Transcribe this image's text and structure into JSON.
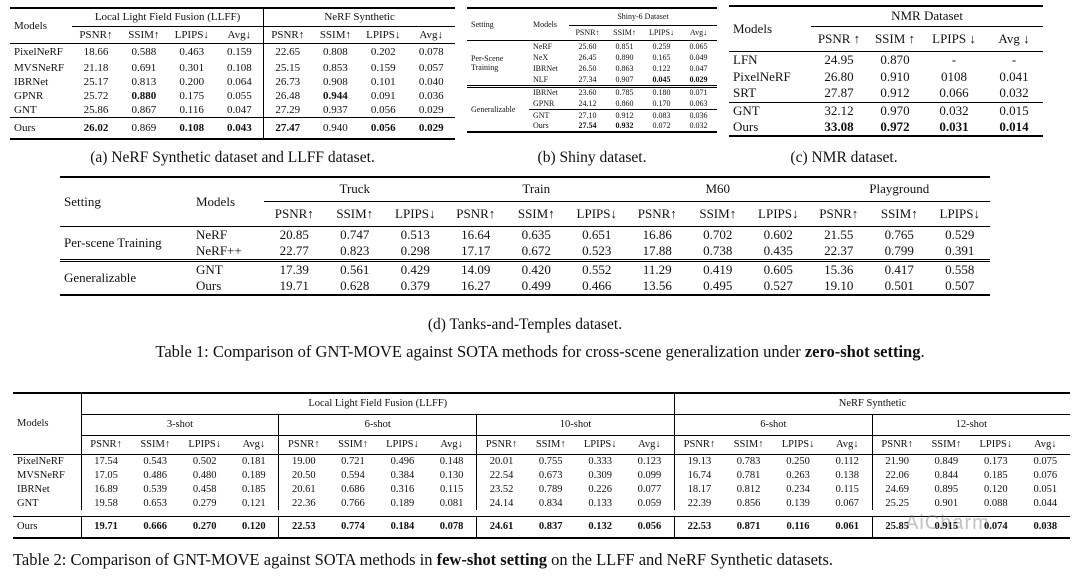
{
  "table_a": {
    "models_label": "Models",
    "groups": [
      "Local Light Field Fusion (LLFF)",
      "NeRF Synthetic"
    ],
    "metrics": [
      "PSNR↑",
      "SSIM↑",
      "LPIPS↓",
      "Avg↓"
    ],
    "rows": [
      {
        "model": "PixelNeRF",
        "values": [
          "18.66",
          "0.588",
          "0.463",
          "0.159",
          "22.65",
          "0.808",
          "0.202",
          "0.078"
        ],
        "bold": []
      },
      {
        "model": "MVSNeRF",
        "values": [
          "21.18",
          "0.691",
          "0.301",
          "0.108",
          "25.15",
          "0.853",
          "0.159",
          "0.057"
        ],
        "bold": []
      },
      {
        "model": "IBRNet",
        "values": [
          "25.17",
          "0.813",
          "0.200",
          "0.064",
          "26.73",
          "0.908",
          "0.101",
          "0.040"
        ],
        "bold": []
      },
      {
        "model": "GPNR",
        "values": [
          "25.72",
          "0.880",
          "0.175",
          "0.055",
          "26.48",
          "0.944",
          "0.091",
          "0.036"
        ],
        "bold": [
          1,
          5
        ]
      },
      {
        "model": "GNT",
        "values": [
          "25.86",
          "0.867",
          "0.116",
          "0.047",
          "27.29",
          "0.937",
          "0.056",
          "0.029"
        ],
        "bold": []
      }
    ],
    "ours": {
      "model": "Ours",
      "values": [
        "26.02",
        "0.869",
        "0.108",
        "0.043",
        "27.47",
        "0.940",
        "0.056",
        "0.029"
      ],
      "bold": [
        0,
        2,
        3,
        4,
        6,
        7
      ]
    },
    "caption": "(a) NeRF Synthetic dataset and LLFF dataset."
  },
  "table_b": {
    "setting_label": "Setting",
    "models_label": "Models",
    "dataset": "Shiny-6 Dataset",
    "metrics": [
      "PSNR↑",
      "SSIM↑",
      "LPIPS↓",
      "Avg↓"
    ],
    "per_scene": {
      "label": "Per-Scene Training",
      "rows": [
        {
          "model": "NeRF",
          "values": [
            "25.60",
            "0.851",
            "0.259",
            "0.065"
          ],
          "bold": []
        },
        {
          "model": "NeX",
          "values": [
            "26.45",
            "0.890",
            "0.165",
            "0.049"
          ],
          "bold": []
        },
        {
          "model": "IBRNet",
          "values": [
            "26.50",
            "0.863",
            "0.122",
            "0.047"
          ],
          "bold": []
        },
        {
          "model": "NLF",
          "values": [
            "27.34",
            "0.907",
            "0.045",
            "0.029"
          ],
          "bold": [
            2,
            3
          ]
        }
      ]
    },
    "generalizable": {
      "label": "Generalizable",
      "rows": [
        {
          "model": "IBRNet",
          "values": [
            "23.60",
            "0.785",
            "0.180",
            "0.071"
          ],
          "bold": []
        },
        {
          "model": "GPNR",
          "values": [
            "24.12",
            "0.860",
            "0.170",
            "0.063"
          ],
          "bold": []
        },
        {
          "model": "GNT",
          "values": [
            "27.10",
            "0.912",
            "0.083",
            "0.036"
          ],
          "bold": []
        },
        {
          "model": "Ours",
          "values": [
            "27.54",
            "0.932",
            "0.072",
            "0.032"
          ],
          "bold": [
            0,
            1
          ]
        }
      ]
    },
    "caption": "(b) Shiny dataset."
  },
  "table_c": {
    "models_label": "Models",
    "dataset": "NMR Dataset",
    "metrics": [
      "PSNR ↑",
      "SSIM ↑",
      "LPIPS ↓",
      "Avg ↓"
    ],
    "rows": [
      {
        "model": "LFN",
        "values": [
          "24.95",
          "0.870",
          "-",
          "-"
        ],
        "bold": []
      },
      {
        "model": "PixelNeRF",
        "values": [
          "26.80",
          "0.910",
          "0108",
          "0.041"
        ],
        "bold": []
      },
      {
        "model": "SRT",
        "values": [
          "27.87",
          "0.912",
          "0.066",
          "0.032"
        ],
        "bold": []
      },
      {
        "model": "GNT",
        "values": [
          "32.12",
          "0.970",
          "0.032",
          "0.015"
        ],
        "bold": []
      },
      {
        "model": "Ours",
        "values": [
          "33.08",
          "0.972",
          "0.031",
          "0.014"
        ],
        "bold": [
          0,
          1,
          2,
          3
        ]
      }
    ],
    "caption": "(c) NMR dataset."
  },
  "table_d": {
    "setting_label": "Setting",
    "models_label": "Models",
    "scenes": [
      "Truck",
      "Train",
      "M60",
      "Playground"
    ],
    "metrics": [
      "PSNR↑",
      "SSIM↑",
      "LPIPS↓"
    ],
    "per_scene": {
      "label": "Per-scene Training",
      "rows": [
        {
          "model": "NeRF",
          "values": [
            "20.85",
            "0.747",
            "0.513",
            "16.64",
            "0.635",
            "0.651",
            "16.86",
            "0.702",
            "0.602",
            "21.55",
            "0.765",
            "0.529"
          ],
          "bold": []
        },
        {
          "model": "NeRF++",
          "values": [
            "22.77",
            "0.823",
            "0.298",
            "17.17",
            "0.672",
            "0.523",
            "17.88",
            "0.738",
            "0.435",
            "22.37",
            "0.799",
            "0.391"
          ],
          "bold": []
        }
      ]
    },
    "generalizable": {
      "label": "Generalizable",
      "rows": [
        {
          "model": "GNT",
          "values": [
            "17.39",
            "0.561",
            "0.429",
            "14.09",
            "0.420",
            "0.552",
            "11.29",
            "0.419",
            "0.605",
            "15.36",
            "0.417",
            "0.558"
          ],
          "bold": []
        },
        {
          "model": "Ours",
          "values": [
            "19.71",
            "0.628",
            "0.379",
            "16.27",
            "0.499",
            "0.466",
            "13.56",
            "0.495",
            "0.527",
            "19.10",
            "0.501",
            "0.507"
          ],
          "bold": []
        }
      ]
    },
    "caption": "(d) Tanks-and-Temples dataset."
  },
  "table1_caption": {
    "prefix": "Table 1: Comparison of GNT-MOVE against SOTA methods for cross-scene generalization under ",
    "emphasis": "zero-shot setting",
    "suffix": "."
  },
  "table2": {
    "models_label": "Models",
    "datasets": [
      "Local Light Field Fusion (LLFF)",
      "NeRF Synthetic"
    ],
    "shots": [
      "3-shot",
      "6-shot",
      "10-shot",
      "6-shot",
      "12-shot"
    ],
    "metrics": [
      "PSNR↑",
      "SSIM↑",
      "LPIPS↓",
      "Avg↓"
    ],
    "rows": [
      {
        "model": "PixelNeRF",
        "values": [
          "17.54",
          "0.543",
          "0.502",
          "0.181",
          "19.00",
          "0.721",
          "0.496",
          "0.148",
          "20.01",
          "0.755",
          "0.333",
          "0.123",
          "19.13",
          "0.783",
          "0.250",
          "0.112",
          "21.90",
          "0.849",
          "0.173",
          "0.075"
        ],
        "bold": []
      },
      {
        "model": "MVSNeRF",
        "values": [
          "17.05",
          "0.486",
          "0.480",
          "0.189",
          "20.50",
          "0.594",
          "0.384",
          "0.130",
          "22.54",
          "0.673",
          "0.309",
          "0.099",
          "16.74",
          "0.781",
          "0.263",
          "0.138",
          "22.06",
          "0.844",
          "0.185",
          "0.076"
        ],
        "bold": []
      },
      {
        "model": "IBRNet",
        "values": [
          "16.89",
          "0.539",
          "0.458",
          "0.185",
          "20.61",
          "0.686",
          "0.316",
          "0.115",
          "23.52",
          "0.789",
          "0.226",
          "0.077",
          "18.17",
          "0.812",
          "0.234",
          "0.115",
          "24.69",
          "0.895",
          "0.120",
          "0.051"
        ],
        "bold": []
      },
      {
        "model": "GNT",
        "values": [
          "19.58",
          "0.653",
          "0.279",
          "0.121",
          "22.36",
          "0.766",
          "0.189",
          "0.081",
          "24.14",
          "0.834",
          "0.133",
          "0.059",
          "22.39",
          "0.856",
          "0.139",
          "0.067",
          "25.25",
          "0.901",
          "0.088",
          "0.044"
        ],
        "bold": []
      }
    ],
    "ours": {
      "model": "Ours",
      "values": [
        "19.71",
        "0.666",
        "0.270",
        "0.120",
        "22.53",
        "0.774",
        "0.184",
        "0.078",
        "24.61",
        "0.837",
        "0.132",
        "0.056",
        "22.53",
        "0.871",
        "0.116",
        "0.061",
        "25.85",
        "0.915",
        "0.074",
        "0.038"
      ],
      "bold": [
        0,
        1,
        2,
        3,
        4,
        5,
        6,
        7,
        8,
        9,
        10,
        11,
        12,
        13,
        14,
        15,
        16,
        17,
        18,
        19
      ]
    },
    "caption": {
      "prefix": "Table 2: Comparison of GNT-MOVE against SOTA methods in ",
      "emphasis": "few-shot setting",
      "suffix": " on the LLFF and NeRF Synthetic datasets."
    }
  },
  "watermark": "AiCharm"
}
